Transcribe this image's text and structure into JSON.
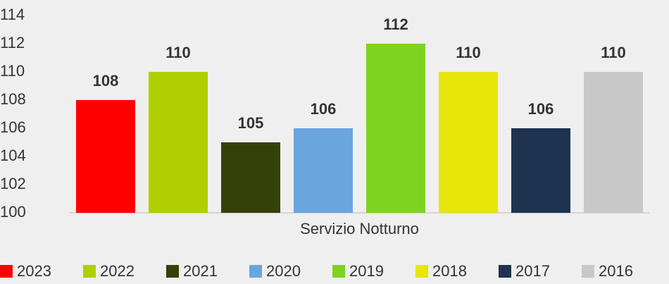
{
  "chart_data": {
    "type": "bar",
    "categories": [
      "Servizio Notturno"
    ],
    "series": [
      {
        "name": "2023",
        "color": "#ff0000",
        "values": [
          108
        ]
      },
      {
        "name": "2022",
        "color": "#b0cf00",
        "values": [
          110
        ]
      },
      {
        "name": "2021",
        "color": "#344108",
        "values": [
          105
        ]
      },
      {
        "name": "2020",
        "color": "#6aa5de",
        "values": [
          106
        ]
      },
      {
        "name": "2019",
        "color": "#7ed321",
        "values": [
          112
        ]
      },
      {
        "name": "2018",
        "color": "#e6e60a",
        "values": [
          110
        ]
      },
      {
        "name": "2017",
        "color": "#1d3350",
        "values": [
          106
        ]
      },
      {
        "name": "2016",
        "color": "#c8c8c8",
        "values": [
          110
        ]
      }
    ],
    "ylim": [
      100,
      115
    ],
    "yticks": [
      100,
      102,
      104,
      106,
      108,
      110,
      112,
      114
    ],
    "legend": "bottom"
  }
}
